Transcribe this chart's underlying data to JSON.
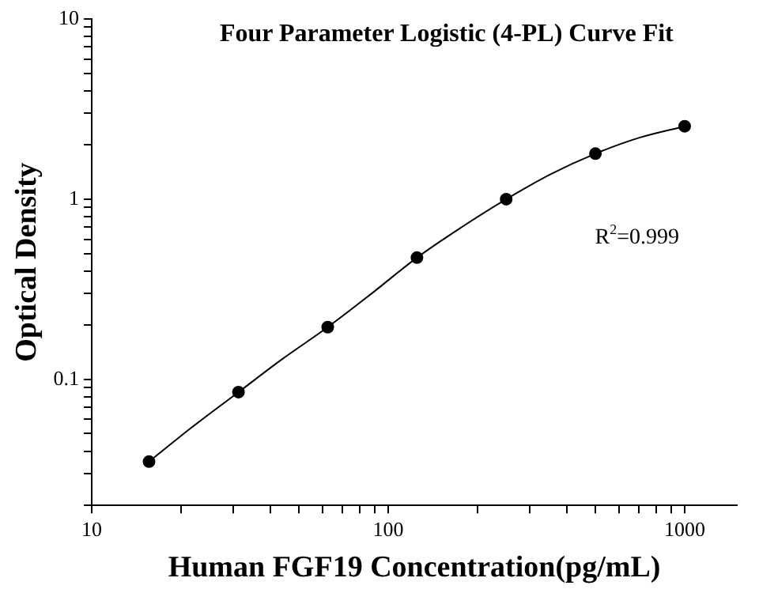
{
  "chart_data": {
    "type": "scatter",
    "title": "Four Parameter Logistic (4-PL) Curve Fit",
    "xlabel": "Human FGF19 Concentration(pg/mL)",
    "ylabel": "Optical Density",
    "log": "xy",
    "grid": false,
    "legend": false,
    "xlim": [
      10,
      1500
    ],
    "ylim": [
      0.02,
      10
    ],
    "xticks": [
      10,
      {
        "value": 20,
        "label": null
      },
      {
        "value": 30,
        "label": null
      },
      {
        "value": 40,
        "label": null
      },
      {
        "value": 50,
        "label": null
      },
      {
        "value": 60,
        "label": null
      },
      {
        "value": 70,
        "label": null
      },
      {
        "value": 80,
        "label": null
      },
      {
        "value": 90,
        "label": null
      },
      100,
      {
        "value": 200,
        "label": null
      },
      {
        "value": 300,
        "label": null
      },
      {
        "value": 400,
        "label": null
      },
      {
        "value": 500,
        "label": null
      },
      {
        "value": 600,
        "label": null
      },
      {
        "value": 700,
        "label": null
      },
      {
        "value": 800,
        "label": null
      },
      {
        "value": 900,
        "label": null
      },
      1000
    ],
    "yticks": [
      {
        "value": 0.02,
        "label": null
      },
      {
        "value": 0.03,
        "label": null
      },
      {
        "value": 0.04,
        "label": null
      },
      {
        "value": 0.05,
        "label": null
      },
      {
        "value": 0.06,
        "label": null
      },
      {
        "value": 0.07,
        "label": null
      },
      {
        "value": 0.08,
        "label": null
      },
      {
        "value": 0.09,
        "label": null
      },
      0.1,
      {
        "value": 0.2,
        "label": null
      },
      {
        "value": 0.3,
        "label": null
      },
      {
        "value": 0.4,
        "label": null
      },
      {
        "value": 0.5,
        "label": null
      },
      {
        "value": 0.6,
        "label": null
      },
      {
        "value": 0.7,
        "label": null
      },
      {
        "value": 0.8,
        "label": null
      },
      {
        "value": 0.9,
        "label": null
      },
      1,
      {
        "value": 2,
        "label": null
      },
      {
        "value": 3,
        "label": null
      },
      {
        "value": 4,
        "label": null
      },
      {
        "value": 5,
        "label": null
      },
      {
        "value": 6,
        "label": null
      },
      {
        "value": 7,
        "label": null
      },
      {
        "value": 8,
        "label": null
      },
      {
        "value": 9,
        "label": null
      },
      10
    ],
    "annotations": [
      "R$^{2}$=0.999"
    ],
    "series": [
      {
        "type": "line",
        "marker": "none",
        "line_style": "solid",
        "color": "#000000",
        "x": [
          15.6,
          22,
          31.25,
          44,
          62.5,
          88,
          125,
          177,
          250,
          354,
          500,
          707,
          1000
        ],
        "values": [
          0.035,
          0.055,
          0.085,
          0.13,
          0.195,
          0.3,
          0.474,
          0.7,
          1.0,
          1.38,
          1.79,
          2.2,
          2.54
        ]
      },
      {
        "type": "scatter",
        "marker": "circle",
        "color": "#000000",
        "x": [
          15.6,
          31.25,
          62.5,
          125,
          250,
          500,
          1000
        ],
        "values": [
          0.035,
          0.085,
          0.195,
          0.474,
          1.0,
          1.79,
          2.54
        ]
      }
    ]
  }
}
